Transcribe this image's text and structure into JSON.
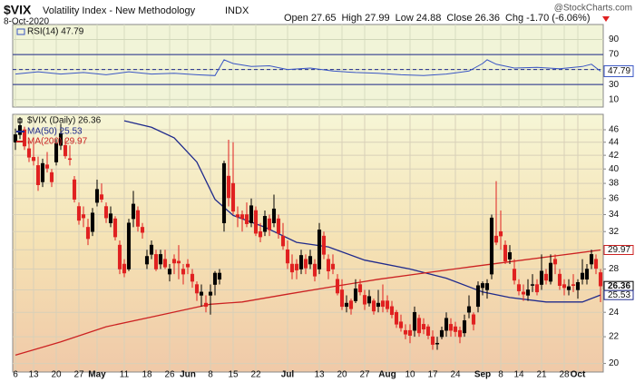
{
  "header": {
    "symbol": "$VIX",
    "name": "Volatility Index - New Methodology",
    "exchange": "INDX",
    "date": "8-Oct-2020",
    "watermark": "@StockCharts.com",
    "quote": [
      {
        "label": "Open",
        "text": "27.65"
      },
      {
        "label": "High",
        "text": "27.99"
      },
      {
        "label": "Low",
        "text": "24.88"
      },
      {
        "label": "Close",
        "text": "26.36"
      },
      {
        "label": "Chg",
        "text": "-1.70 (-6.06%)"
      }
    ]
  },
  "chart_data": [
    {
      "type": "line",
      "name": "RSI(14) 47.79",
      "color": "#3a56c4",
      "ylim": [
        0,
        110
      ],
      "yticks": [
        10,
        30,
        50,
        70,
        90
      ],
      "levels": [
        70,
        30
      ],
      "midline": 50,
      "x": [
        0,
        5,
        10,
        15,
        20,
        25,
        30,
        35,
        40,
        44,
        46,
        48,
        52,
        56,
        60,
        65,
        70,
        75,
        80,
        85,
        90,
        95,
        100,
        103,
        104,
        106,
        110,
        115,
        120,
        125,
        127,
        129
      ],
      "values": [
        44,
        47,
        44,
        46,
        43,
        47,
        44,
        45,
        43,
        42,
        63,
        58,
        54,
        55,
        50,
        52,
        48,
        46,
        45,
        43,
        42,
        44,
        48,
        58,
        63,
        57,
        52,
        53,
        51,
        54,
        57,
        47.79
      ],
      "last": 47.79,
      "grid": true
    },
    {
      "type": "candlestick",
      "name": "$VIX (Daily) 26.36",
      "log_scale": true,
      "ylim": [
        19.4,
        48.6
      ],
      "yticks": [
        20,
        22,
        24,
        26,
        28,
        30,
        32,
        34,
        36,
        38,
        40,
        42,
        44,
        46
      ],
      "grid": true,
      "up_color": "#000000",
      "down_color": "#e02020",
      "xlim": [
        0,
        129
      ],
      "xticks": [
        {
          "value": 0,
          "label": "6"
        },
        {
          "value": 4,
          "label": "13"
        },
        {
          "value": 9,
          "label": "20"
        },
        {
          "value": 14,
          "label": "27"
        },
        {
          "value": 18,
          "label": "May"
        },
        {
          "value": 24,
          "label": "11"
        },
        {
          "value": 29,
          "label": "18"
        },
        {
          "value": 34,
          "label": "26"
        },
        {
          "value": 38,
          "label": "Jun"
        },
        {
          "value": 43,
          "label": "8"
        },
        {
          "value": 48,
          "label": "15"
        },
        {
          "value": 53,
          "label": "22"
        },
        {
          "value": 60,
          "label": "Jul"
        },
        {
          "value": 67,
          "label": "13"
        },
        {
          "value": 72,
          "label": "20"
        },
        {
          "value": 77,
          "label": "27"
        },
        {
          "value": 82,
          "label": "Aug"
        },
        {
          "value": 87,
          "label": "10"
        },
        {
          "value": 92,
          "label": "17"
        },
        {
          "value": 97,
          "label": "24"
        },
        {
          "value": 103,
          "label": "Sep"
        },
        {
          "value": 107,
          "label": "8"
        },
        {
          "value": 111,
          "label": "14"
        },
        {
          "value": 116,
          "label": "21"
        },
        {
          "value": 121,
          "label": "28"
        },
        {
          "value": 124,
          "label": "Oct"
        }
      ],
      "candles": [
        [
          44.0,
          46.2,
          42.8,
          45.2
        ],
        [
          45.2,
          47.5,
          44.5,
          46.7
        ],
        [
          46.0,
          46.5,
          42.8,
          43.4
        ],
        [
          43.0,
          44.2,
          41.0,
          41.7
        ],
        [
          41.7,
          44.5,
          40.5,
          41.2
        ],
        [
          40.5,
          41.8,
          37.0,
          37.8
        ],
        [
          38.2,
          41.5,
          37.5,
          40.8
        ],
        [
          40.6,
          42.5,
          39.5,
          40.1
        ],
        [
          39.5,
          40.0,
          37.5,
          38.2
        ],
        [
          41.0,
          44.5,
          40.5,
          43.8
        ],
        [
          43.5,
          47.0,
          42.8,
          45.4
        ],
        [
          43.5,
          44.5,
          41.5,
          41.9
        ],
        [
          41.5,
          43.5,
          40.5,
          41.4
        ],
        [
          38.5,
          39.0,
          35.5,
          35.9
        ],
        [
          35.0,
          35.5,
          32.8,
          33.3
        ],
        [
          34.0,
          35.0,
          32.5,
          33.6
        ],
        [
          32.5,
          33.5,
          30.5,
          31.2
        ],
        [
          32.0,
          34.8,
          31.5,
          34.2
        ],
        [
          35.5,
          38.5,
          35.0,
          37.2
        ],
        [
          36.5,
          38.0,
          35.5,
          35.9
        ],
        [
          35.0,
          35.5,
          33.0,
          33.6
        ],
        [
          33.0,
          35.0,
          32.5,
          34.1
        ],
        [
          33.5,
          33.8,
          31.0,
          31.4
        ],
        [
          30.5,
          31.0,
          27.5,
          28.0
        ],
        [
          28.5,
          29.0,
          27.2,
          27.6
        ],
        [
          28.0,
          33.5,
          27.8,
          33.0
        ],
        [
          33.5,
          37.0,
          32.5,
          35.3
        ],
        [
          34.5,
          35.0,
          32.0,
          32.6
        ],
        [
          32.5,
          33.0,
          31.2,
          31.9
        ],
        [
          28.5,
          30.0,
          28.0,
          29.3
        ],
        [
          29.5,
          31.0,
          29.0,
          30.5
        ],
        [
          29.5,
          30.0,
          27.8,
          28.0
        ],
        [
          28.5,
          30.0,
          28.0,
          29.5
        ],
        [
          29.0,
          30.0,
          28.0,
          28.2
        ],
        [
          27.5,
          28.5,
          26.8,
          28.0
        ],
        [
          29.0,
          29.5,
          27.5,
          28.6
        ],
        [
          28.8,
          30.5,
          27.0,
          28.6
        ],
        [
          28.0,
          28.5,
          26.5,
          27.5
        ],
        [
          28.5,
          29.0,
          27.5,
          28.2
        ],
        [
          27.5,
          28.0,
          26.2,
          26.8
        ],
        [
          26.5,
          26.8,
          25.0,
          25.7
        ],
        [
          25.5,
          26.5,
          24.5,
          25.8
        ],
        [
          24.8,
          25.5,
          24.0,
          24.5
        ],
        [
          25.5,
          26.5,
          23.8,
          25.8
        ],
        [
          26.5,
          27.8,
          25.5,
          27.6
        ],
        [
          27.0,
          28.0,
          26.5,
          27.6
        ],
        [
          33.0,
          41.2,
          32.0,
          40.8
        ],
        [
          39.0,
          44.4,
          35.0,
          36.1
        ],
        [
          38.0,
          44.0,
          34.0,
          34.4
        ],
        [
          34.0,
          35.0,
          32.5,
          33.7
        ],
        [
          34.0,
          34.5,
          32.0,
          33.5
        ],
        [
          34.0,
          35.5,
          32.5,
          32.9
        ],
        [
          33.0,
          36.0,
          32.5,
          35.1
        ],
        [
          34.5,
          35.0,
          31.5,
          31.8
        ],
        [
          32.0,
          33.0,
          30.8,
          31.4
        ],
        [
          32.0,
          34.5,
          31.5,
          33.8
        ],
        [
          33.5,
          34.0,
          31.5,
          32.2
        ],
        [
          33.0,
          36.5,
          32.5,
          34.7
        ],
        [
          33.5,
          34.0,
          31.2,
          31.8
        ],
        [
          31.5,
          33.0,
          30.0,
          30.4
        ],
        [
          30.0,
          31.0,
          28.0,
          28.6
        ],
        [
          28.5,
          29.5,
          27.0,
          27.7
        ],
        [
          28.5,
          29.0,
          27.0,
          27.9
        ],
        [
          28.0,
          30.0,
          27.5,
          29.4
        ],
        [
          29.0,
          29.5,
          27.5,
          28.1
        ],
        [
          28.5,
          30.0,
          28.0,
          29.3
        ],
        [
          28.5,
          29.0,
          26.8,
          27.3
        ],
        [
          28.0,
          33.0,
          27.5,
          32.2
        ],
        [
          31.5,
          32.0,
          29.0,
          29.5
        ],
        [
          29.0,
          29.5,
          27.0,
          27.8
        ],
        [
          28.5,
          29.5,
          27.5,
          28.0
        ],
        [
          27.0,
          27.5,
          25.5,
          25.7
        ],
        [
          26.0,
          27.0,
          24.2,
          24.5
        ],
        [
          24.5,
          25.5,
          24.0,
          24.8
        ],
        [
          25.0,
          25.2,
          23.8,
          24.3
        ],
        [
          25.0,
          27.0,
          24.8,
          26.1
        ],
        [
          26.5,
          27.0,
          25.5,
          25.8
        ],
        [
          25.5,
          26.0,
          24.2,
          24.7
        ],
        [
          24.8,
          26.0,
          24.5,
          25.4
        ],
        [
          25.0,
          25.2,
          23.8,
          24.1
        ],
        [
          24.5,
          26.0,
          24.0,
          24.8
        ],
        [
          25.0,
          26.5,
          24.0,
          24.5
        ],
        [
          25.0,
          25.5,
          24.0,
          24.3
        ],
        [
          24.5,
          25.0,
          23.5,
          23.8
        ],
        [
          24.0,
          24.2,
          22.7,
          23.0
        ],
        [
          23.2,
          23.8,
          22.4,
          22.7
        ],
        [
          22.5,
          23.0,
          21.8,
          22.2
        ],
        [
          22.5,
          23.0,
          21.5,
          22.1
        ],
        [
          22.5,
          24.5,
          22.0,
          24.0
        ],
        [
          23.5,
          23.8,
          22.0,
          22.3
        ],
        [
          23.0,
          23.5,
          22.2,
          22.6
        ],
        [
          22.8,
          23.0,
          21.8,
          22.1
        ],
        [
          22.0,
          22.5,
          21.0,
          21.4
        ],
        [
          21.5,
          22.0,
          21.0,
          21.5
        ],
        [
          22.0,
          22.8,
          21.8,
          22.5
        ],
        [
          22.5,
          24.0,
          22.0,
          23.5
        ],
        [
          23.0,
          23.5,
          22.0,
          22.5
        ],
        [
          22.8,
          23.2,
          22.0,
          22.4
        ],
        [
          22.5,
          22.8,
          21.5,
          22.0
        ],
        [
          22.3,
          23.8,
          22.0,
          23.3
        ],
        [
          24.0,
          25.5,
          23.5,
          24.5
        ],
        [
          23.8,
          24.0,
          22.5,
          23.0
        ],
        [
          24.5,
          26.8,
          24.0,
          26.4
        ],
        [
          26.2,
          26.8,
          25.5,
          26.6
        ],
        [
          26.0,
          27.0,
          25.2,
          26.6
        ],
        [
          27.5,
          34.0,
          27.0,
          33.6
        ],
        [
          31.5,
          38.3,
          30.5,
          30.8
        ],
        [
          32.0,
          34.5,
          30.0,
          31.5
        ],
        [
          30.5,
          31.0,
          28.5,
          28.8
        ],
        [
          29.0,
          30.5,
          28.5,
          29.7
        ],
        [
          28.0,
          29.0,
          26.5,
          26.9
        ],
        [
          26.5,
          27.0,
          25.5,
          25.9
        ],
        [
          25.8,
          26.5,
          25.0,
          25.6
        ],
        [
          25.5,
          27.0,
          25.0,
          26.0
        ],
        [
          26.5,
          27.5,
          25.8,
          26.5
        ],
        [
          26.5,
          27.0,
          25.5,
          25.8
        ],
        [
          26.5,
          29.5,
          26.0,
          27.8
        ],
        [
          27.5,
          28.0,
          26.5,
          26.9
        ],
        [
          26.8,
          29.5,
          26.5,
          28.6
        ],
        [
          29.0,
          29.5,
          27.5,
          28.5
        ],
        [
          27.5,
          28.0,
          26.0,
          26.4
        ],
        [
          26.5,
          27.0,
          25.5,
          26.2
        ],
        [
          26.0,
          27.0,
          25.5,
          26.3
        ],
        [
          26.5,
          27.5,
          25.8,
          26.4
        ],
        [
          26.0,
          27.0,
          25.2,
          26.7
        ],
        [
          27.0,
          29.0,
          26.5,
          27.6
        ],
        [
          27.0,
          28.5,
          26.5,
          28.0
        ],
        [
          28.5,
          30.0,
          28.0,
          29.5
        ],
        [
          29.0,
          29.5,
          27.5,
          28.06
        ],
        [
          27.65,
          27.99,
          24.88,
          26.36
        ]
      ],
      "last": 26.36,
      "series": [
        {
          "name": "MA(50) 25.53",
          "color": "#1f2a8c",
          "x": [
            24,
            30,
            35,
            40,
            44,
            48,
            55,
            62,
            69,
            77,
            87,
            95,
            103,
            109,
            117,
            125,
            129
          ],
          "values": [
            47.5,
            46.4,
            44.7,
            41.0,
            35.9,
            33.9,
            32.5,
            30.8,
            30.3,
            28.9,
            28.0,
            27.1,
            25.8,
            25.3,
            24.9,
            24.9,
            25.53
          ],
          "last": 25.53
        },
        {
          "name": "MA(200) 29.97",
          "color": "#cc2222",
          "x": [
            0,
            10,
            20,
            30,
            43,
            50,
            60,
            70,
            80,
            90,
            100,
            110,
            120,
            129
          ],
          "values": [
            20.6,
            21.6,
            22.8,
            23.6,
            24.7,
            24.9,
            25.6,
            26.3,
            27.0,
            27.6,
            28.2,
            28.8,
            29.4,
            29.97
          ],
          "last": 29.97
        }
      ]
    }
  ]
}
